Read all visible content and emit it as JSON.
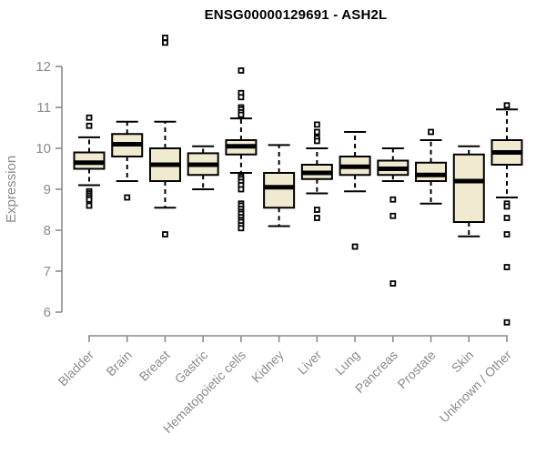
{
  "title": "ENSG00000129691 - ASH2L",
  "colors": {
    "box_fill": "#f0ead0",
    "box_border": "#000000",
    "median": "#000000",
    "whisker": "#000000",
    "outlier": "#000000",
    "axis": "#8b8b8b",
    "tick_label": "#8b8b8b",
    "title": "#000000"
  },
  "chart_data": {
    "type": "boxplot",
    "title": "ENSG00000129691 - ASH2L",
    "xlabel": "",
    "ylabel": "Expression",
    "ylim": [
      6,
      12
    ],
    "yticks": [
      6,
      7,
      8,
      9,
      10,
      11,
      12
    ],
    "grid": false,
    "legend": "none",
    "categories": [
      "Bladder",
      "Brain",
      "Breast",
      "Gastric",
      "Hematopoietic cells",
      "Kidney",
      "Liver",
      "Lung",
      "Pancreas",
      "Prostate",
      "Skin",
      "Unknown / Other"
    ],
    "series": [
      {
        "name": "Bladder",
        "whisker_low": 9.1,
        "q1": 9.5,
        "median": 9.65,
        "q3": 9.9,
        "whisker_high": 10.27,
        "outliers": [
          10.75,
          10.55,
          8.95,
          8.9,
          8.85,
          8.8,
          8.75,
          8.6
        ]
      },
      {
        "name": "Brain",
        "whisker_low": 9.2,
        "q1": 9.8,
        "median": 10.1,
        "q3": 10.35,
        "whisker_high": 10.65,
        "outliers": [
          8.8
        ]
      },
      {
        "name": "Breast",
        "whisker_low": 8.55,
        "q1": 9.2,
        "median": 9.6,
        "q3": 10.0,
        "whisker_high": 10.65,
        "outliers": [
          12.7,
          12.58,
          7.9
        ]
      },
      {
        "name": "Gastric",
        "whisker_low": 9.0,
        "q1": 9.35,
        "median": 9.6,
        "q3": 9.88,
        "whisker_high": 10.05,
        "outliers": []
      },
      {
        "name": "Hematopoietic cells",
        "whisker_low": 9.4,
        "q1": 9.85,
        "median": 10.05,
        "q3": 10.2,
        "whisker_high": 10.73,
        "outliers": [
          11.9,
          11.35,
          11.25,
          11.0,
          10.95,
          10.88,
          10.82,
          9.3,
          9.25,
          9.18,
          9.1,
          9.0,
          8.65,
          8.6,
          8.52,
          8.45,
          8.4,
          8.32,
          8.25,
          8.2,
          8.12,
          8.05
        ]
      },
      {
        "name": "Kidney",
        "whisker_low": 8.1,
        "q1": 8.55,
        "median": 9.05,
        "q3": 9.4,
        "whisker_high": 10.08,
        "outliers": []
      },
      {
        "name": "Liver",
        "whisker_low": 8.9,
        "q1": 9.25,
        "median": 9.4,
        "q3": 9.6,
        "whisker_high": 10.0,
        "outliers": [
          10.58,
          10.4,
          10.25,
          10.18,
          8.5,
          8.3
        ]
      },
      {
        "name": "Lung",
        "whisker_low": 8.95,
        "q1": 9.35,
        "median": 9.55,
        "q3": 9.8,
        "whisker_high": 10.4,
        "outliers": [
          7.6
        ]
      },
      {
        "name": "Pancreas",
        "whisker_low": 9.2,
        "q1": 9.35,
        "median": 9.5,
        "q3": 9.7,
        "whisker_high": 10.0,
        "outliers": [
          8.75,
          8.35,
          6.7
        ]
      },
      {
        "name": "Prostate",
        "whisker_low": 8.65,
        "q1": 9.2,
        "median": 9.35,
        "q3": 9.65,
        "whisker_high": 10.2,
        "outliers": [
          10.4
        ]
      },
      {
        "name": "Skin",
        "whisker_low": 7.85,
        "q1": 8.2,
        "median": 9.2,
        "q3": 9.85,
        "whisker_high": 10.05,
        "outliers": []
      },
      {
        "name": "Unknown / Other",
        "whisker_low": 8.8,
        "q1": 9.6,
        "median": 9.9,
        "q3": 10.2,
        "whisker_high": 10.95,
        "outliers": [
          11.05,
          8.65,
          8.58,
          8.3,
          7.9,
          7.1,
          5.75
        ]
      }
    ]
  }
}
